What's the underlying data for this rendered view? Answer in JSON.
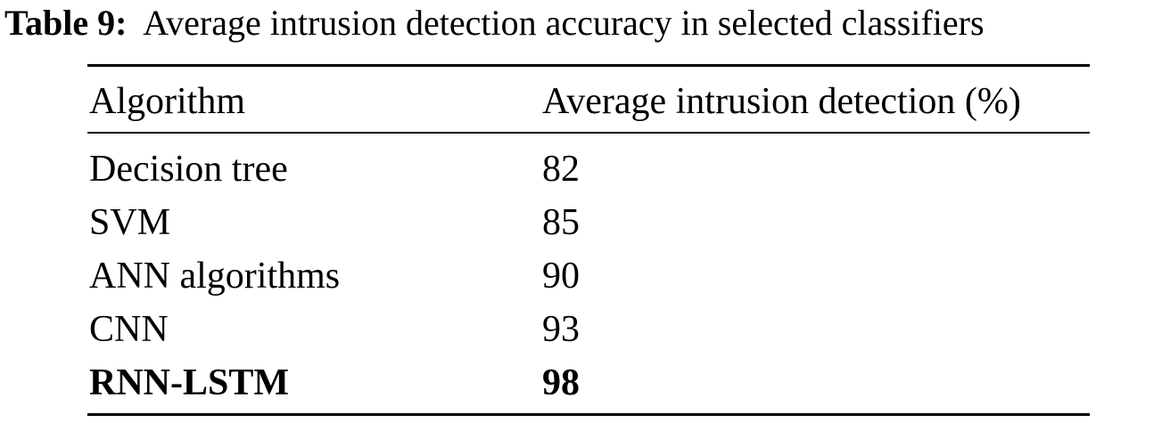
{
  "caption": {
    "label": "Table 9:",
    "text": "Average intrusion detection accuracy in selected classifiers"
  },
  "table": {
    "headers": [
      "Algorithm",
      "Average intrusion detection (%)"
    ],
    "rows": [
      {
        "algorithm": "Decision tree",
        "value": "82",
        "bold": false
      },
      {
        "algorithm": "SVM",
        "value": "85",
        "bold": false
      },
      {
        "algorithm": "ANN algorithms",
        "value": "90",
        "bold": false
      },
      {
        "algorithm": "CNN",
        "value": "93",
        "bold": false
      },
      {
        "algorithm": "RNN-LSTM",
        "value": "98",
        "bold": true
      }
    ]
  }
}
